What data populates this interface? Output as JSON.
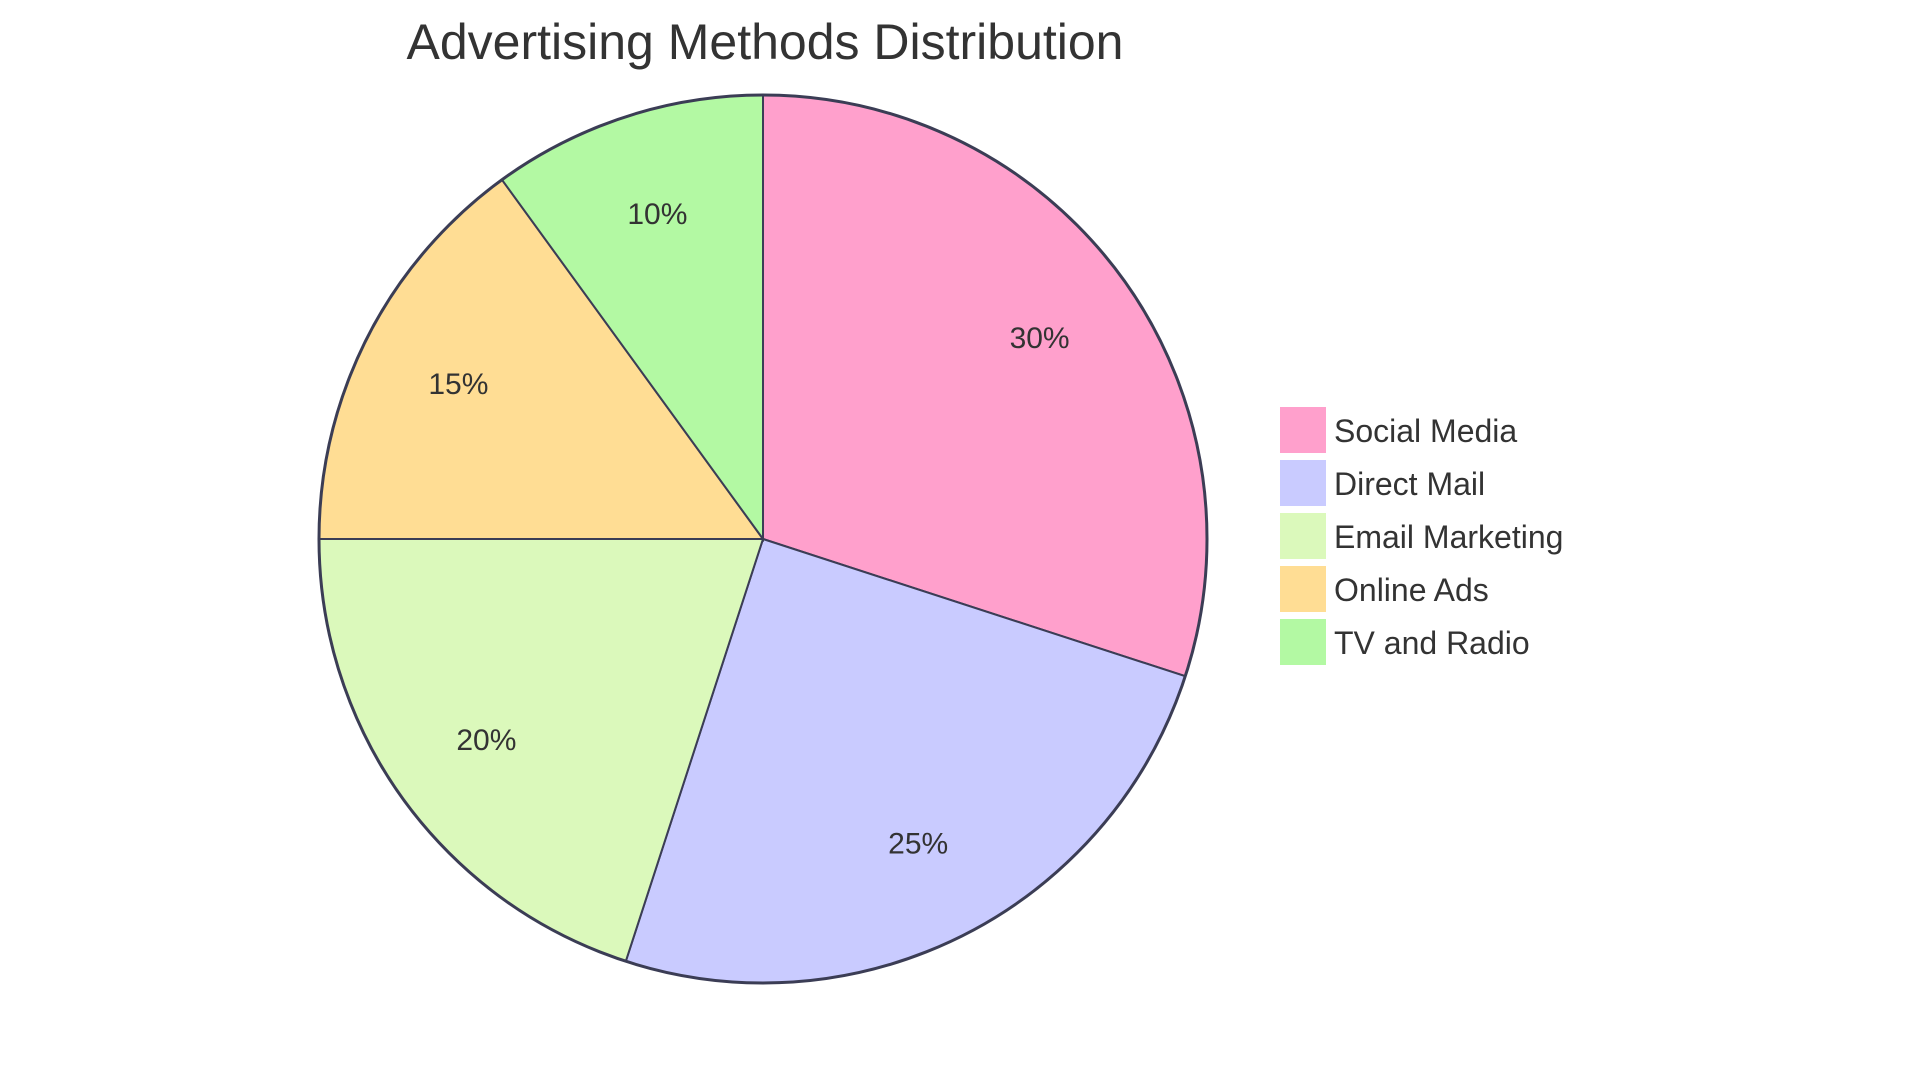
{
  "chart_data": {
    "type": "pie",
    "title": "Advertising Methods Distribution",
    "categories": [
      "Social Media",
      "Direct Mail",
      "Email Marketing",
      "Online Ads",
      "TV and Radio"
    ],
    "values": [
      30,
      25,
      20,
      15,
      10
    ],
    "labels": [
      "30%",
      "25%",
      "20%",
      "15%",
      "10%"
    ],
    "colors": [
      "#ffa0cc",
      "#c9cbff",
      "#dbf9bb",
      "#ffdd94",
      "#b3f9a3"
    ],
    "start_angle": "12 o'clock, clockwise",
    "legend_position": "right"
  },
  "style": {
    "stroke_color": "#3b3d55"
  }
}
